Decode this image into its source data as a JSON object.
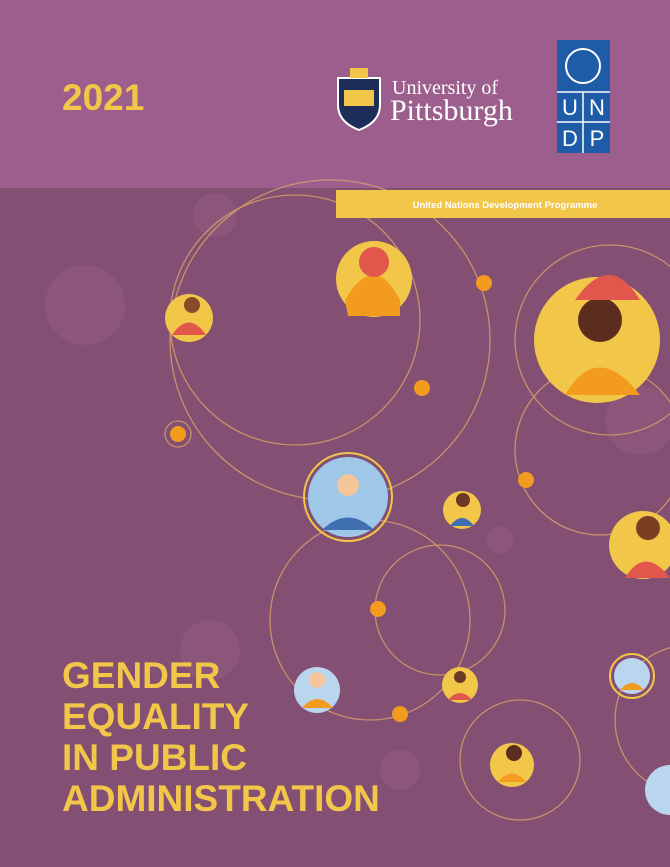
{
  "header": {
    "year": "2021",
    "university": {
      "line1": "University of",
      "line2": "Pittsburgh"
    },
    "undp_letters": [
      "U",
      "N",
      "D",
      "P"
    ],
    "banner": "United Nations Development Programme"
  },
  "title": {
    "lines": [
      "GENDER",
      "EQUALITY",
      "IN PUBLIC",
      "ADMINISTRATION"
    ]
  }
}
